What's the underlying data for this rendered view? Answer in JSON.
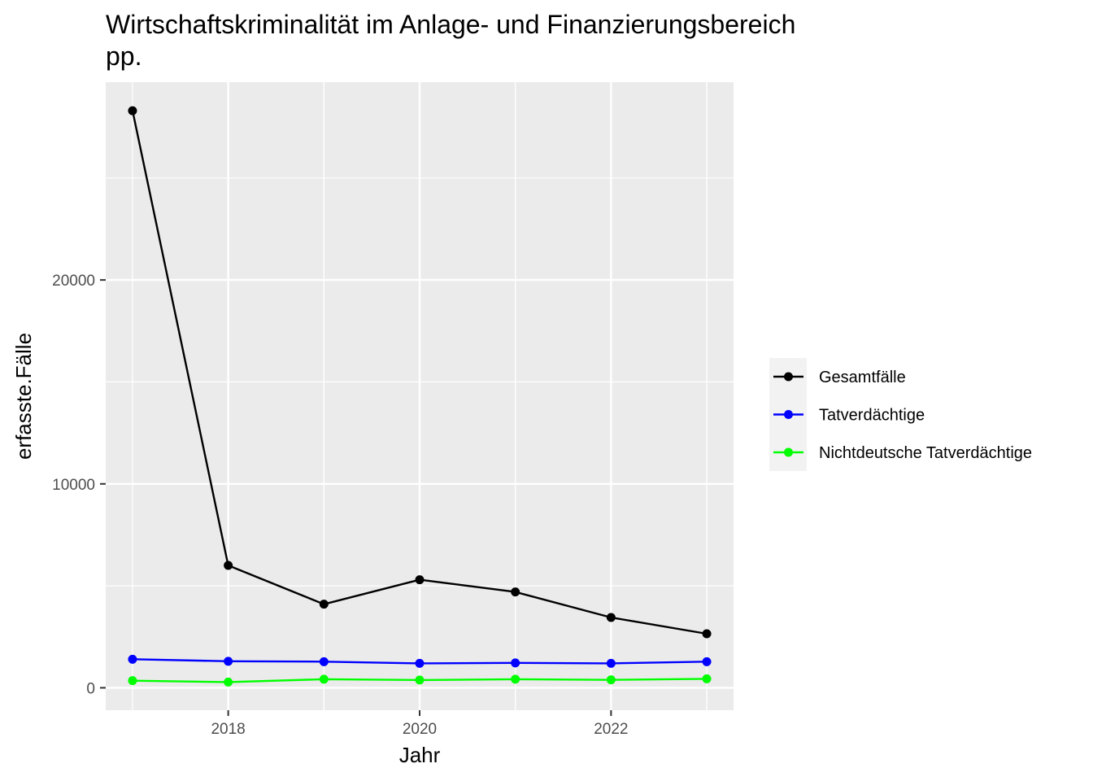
{
  "chart_data": {
    "type": "line",
    "title_lines": [
      "Wirtschaftskriminalität im Anlage- und Finanzierungsbereich",
      "pp."
    ],
    "xlabel": "Jahr",
    "ylabel": "erfasste.Fälle",
    "x": [
      2017,
      2018,
      2019,
      2020,
      2021,
      2022,
      2023
    ],
    "xlim": [
      2016.72,
      2023.28
    ],
    "ylim": [
      -1100,
      29700
    ],
    "x_ticks": [
      2018,
      2020,
      2022
    ],
    "y_ticks": [
      0,
      10000,
      20000
    ],
    "grid": true,
    "legend_position": "right",
    "series": [
      {
        "name": "Gesamtfälle",
        "color": "#000000",
        "values": [
          28300,
          6000,
          4100,
          5300,
          4700,
          3450,
          2650
        ]
      },
      {
        "name": "Tatverdächtige",
        "color": "#0000ff",
        "values": [
          1400,
          1300,
          1280,
          1200,
          1220,
          1200,
          1280
        ]
      },
      {
        "name": "Nichtdeutsche Tatverdächtige",
        "color": "#00ff00",
        "values": [
          350,
          280,
          420,
          380,
          420,
          390,
          440
        ]
      }
    ]
  }
}
